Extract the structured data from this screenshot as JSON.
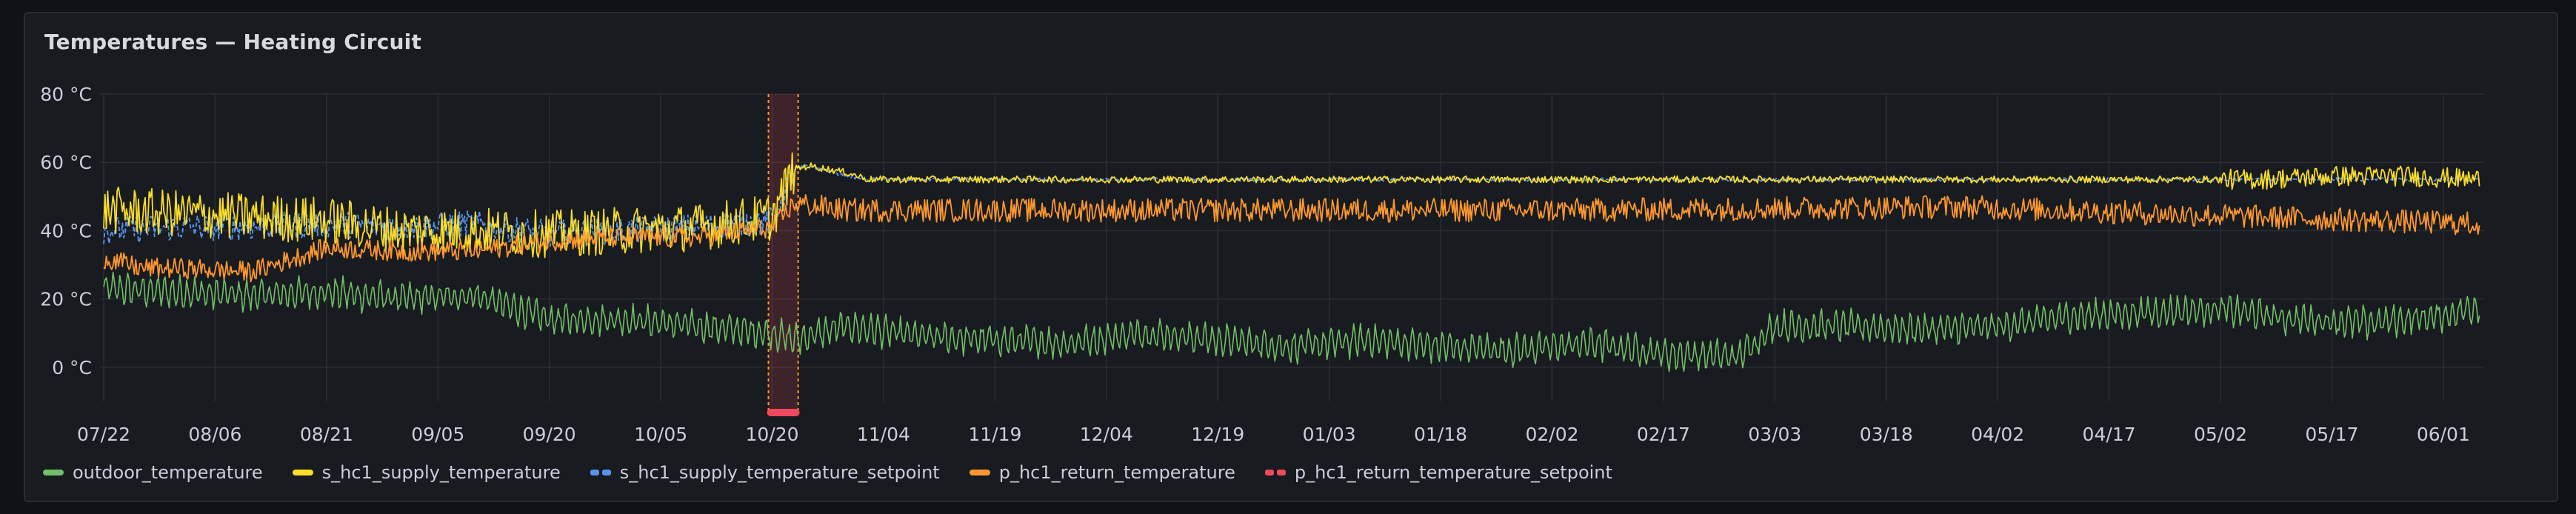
{
  "panel": {
    "title": "Temperatures — Heating Circuit"
  },
  "colors": {
    "outdoor_temperature": "#73bf69",
    "s_hc1_supply_temperature": "#fade2a",
    "s_hc1_supply_temperature_setpoint": "#5794f2",
    "p_hc1_return_temperature": "#ff9830",
    "p_hc1_return_temperature_setpoint": "#f2495c",
    "grid": "#2a2d33",
    "axis_text": "#ccccdc",
    "annotation": "#f2495c"
  },
  "legend": [
    {
      "name": "outdoor_temperature",
      "color": "#73bf69",
      "style": "solid"
    },
    {
      "name": "s_hc1_supply_temperature",
      "color": "#fade2a",
      "style": "solid"
    },
    {
      "name": "s_hc1_supply_temperature_setpoint",
      "color": "#5794f2",
      "style": "dashed"
    },
    {
      "name": "p_hc1_return_temperature",
      "color": "#ff9830",
      "style": "solid"
    },
    {
      "name": "p_hc1_return_temperature_setpoint",
      "color": "#f2495c",
      "style": "dashed"
    }
  ],
  "chart_data": {
    "type": "line",
    "title": "Temperatures — Heating Circuit",
    "xlabel": "",
    "ylabel": "",
    "y_unit": "°C",
    "ylim": [
      -10,
      80
    ],
    "y_ticks": [
      "0 °C",
      "20 °C",
      "40 °C",
      "60 °C",
      "80 °C"
    ],
    "y_tick_values": [
      0,
      20,
      40,
      60,
      80
    ],
    "x_ticks": [
      "07/22",
      "08/06",
      "08/21",
      "09/05",
      "09/20",
      "10/05",
      "10/20",
      "11/04",
      "11/19",
      "12/04",
      "12/19",
      "01/03",
      "01/18",
      "02/02",
      "02/17",
      "03/03",
      "03/18",
      "04/02",
      "04/17",
      "05/02",
      "05/17",
      "06/01"
    ],
    "x_tick_days": [
      0,
      15,
      30,
      45,
      60,
      75,
      90,
      105,
      120,
      135,
      150,
      165,
      180,
      195,
      210,
      225,
      240,
      255,
      270,
      285,
      300,
      315
    ],
    "x_range_days": [
      -0.5,
      320.5
    ],
    "grid": true,
    "legend_position": "bottom-left",
    "annotation": {
      "label": "",
      "start_day": 89.5,
      "end_day": 93.5
    },
    "series": [
      {
        "name": "outdoor_temperature",
        "style": "solid",
        "x": [
          0,
          10,
          20,
          30,
          40,
          50,
          60,
          70,
          80,
          90,
          93,
          100,
          110,
          120,
          130,
          140,
          150,
          160,
          170,
          180,
          190,
          200,
          210,
          220,
          225,
          235,
          245,
          255,
          265,
          275,
          285,
          295,
          305,
          315,
          320
        ],
        "y": [
          23,
          22,
          21,
          22,
          20,
          21,
          14,
          14,
          12,
          10,
          8,
          12,
          9,
          8,
          7,
          10,
          8,
          6,
          8,
          6,
          5,
          7,
          4,
          3,
          12,
          12,
          11,
          12,
          15,
          16,
          17,
          14,
          13,
          15,
          18
        ]
      },
      {
        "name": "s_hc1_supply_temperature",
        "style": "solid",
        "x": [
          0,
          10,
          20,
          30,
          40,
          50,
          60,
          70,
          80,
          90,
          93,
          95,
          100,
          103,
          110,
          150,
          200,
          250,
          290,
          300,
          310,
          320
        ],
        "y": [
          46,
          45,
          44,
          43,
          40,
          40,
          39,
          40,
          41,
          44,
          58,
          59,
          57,
          55,
          55,
          55,
          55,
          55,
          55,
          56,
          56,
          55
        ]
      },
      {
        "name": "s_hc1_supply_temperature_setpoint",
        "style": "dashed",
        "x": [
          0,
          10,
          20,
          30,
          40,
          50,
          60,
          70,
          80,
          90,
          93,
          95,
          100,
          103,
          320
        ],
        "y": [
          40,
          41,
          41,
          42,
          41,
          42,
          39,
          40,
          41,
          43,
          58,
          59,
          56,
          55,
          55
        ]
      },
      {
        "name": "p_hc1_return_temperature",
        "style": "solid",
        "x": [
          0,
          5,
          10,
          20,
          30,
          40,
          50,
          60,
          70,
          80,
          90,
          93,
          100,
          150,
          200,
          250,
          290,
          320
        ],
        "y": [
          32,
          29,
          29,
          28,
          35,
          34,
          34,
          37,
          38,
          38,
          41,
          48,
          46,
          46,
          46,
          47,
          44,
          42
        ]
      },
      {
        "name": "p_hc1_return_temperature_setpoint",
        "style": "dashed",
        "x": [],
        "y": []
      }
    ]
  }
}
